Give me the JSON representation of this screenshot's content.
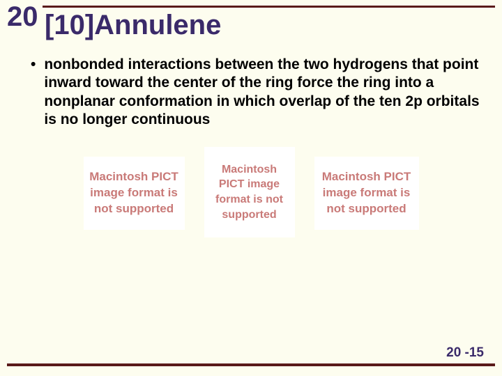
{
  "chapter": "20",
  "title": "[10]Annulene",
  "bullet": "nonbonded interactions between the two hydrogens that point inward toward the center of the ring force the ring into a nonplanar conformation in which overlap of the ten 2p orbitals is no longer continuous",
  "pict_text": "Macintosh PICT image format is not supported",
  "page_number": "20 -15",
  "colors": {
    "background": "#fdfdef",
    "heading": "#3a2a6a",
    "rule": "#5a1a1a",
    "pict_text": "#c97a78",
    "pict_bg": "#ffffff",
    "body_text": "#000000"
  }
}
